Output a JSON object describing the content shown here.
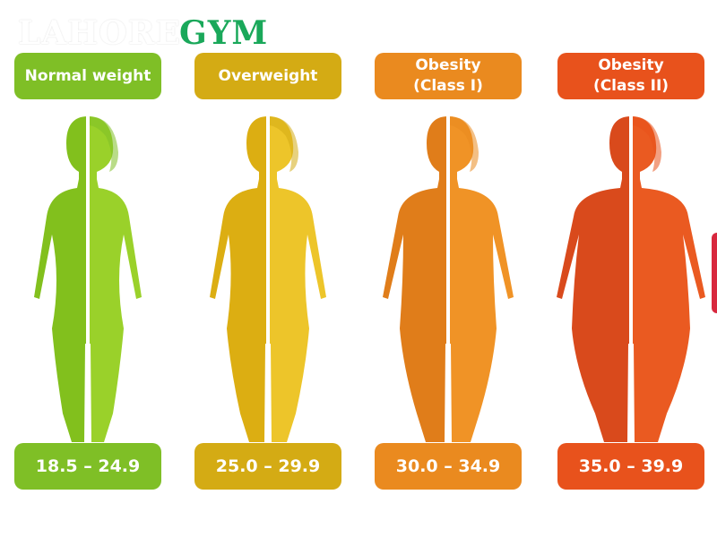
{
  "logo": {
    "ghost_text": "LAHORE",
    "brand_text": "GYM"
  },
  "categories": [
    {
      "label_line1": "Normal weight",
      "label_line2": "",
      "range": "18.5 – 24.9",
      "color_main": "#7fbf26",
      "color_light": "#99cc33",
      "color_figure_left": "#82c01d",
      "color_figure_right": "#9ad12a"
    },
    {
      "label_line1": "Overweight",
      "label_line2": "",
      "range": "25.0 – 29.9",
      "color_main": "#d4ab14",
      "color_light": "#e8bf1f",
      "color_figure_left": "#dcae12",
      "color_figure_right": "#edc52a"
    },
    {
      "label_line1": "Obesity",
      "label_line2": "(Class I)",
      "range": "30.0 – 34.9",
      "color_main": "#ea8a1f",
      "color_light": "#f29a2e",
      "color_figure_left": "#e07d1a",
      "color_figure_right": "#f09326"
    },
    {
      "label_line1": "Obesity",
      "label_line2": "(Class II)",
      "range": "35.0 – 39.9",
      "color_main": "#e8521c",
      "color_light": "#f0642a",
      "color_figure_left": "#d94a1c",
      "color_figure_right": "#ea5a21"
    }
  ],
  "partial_next_color": "#d8283e"
}
